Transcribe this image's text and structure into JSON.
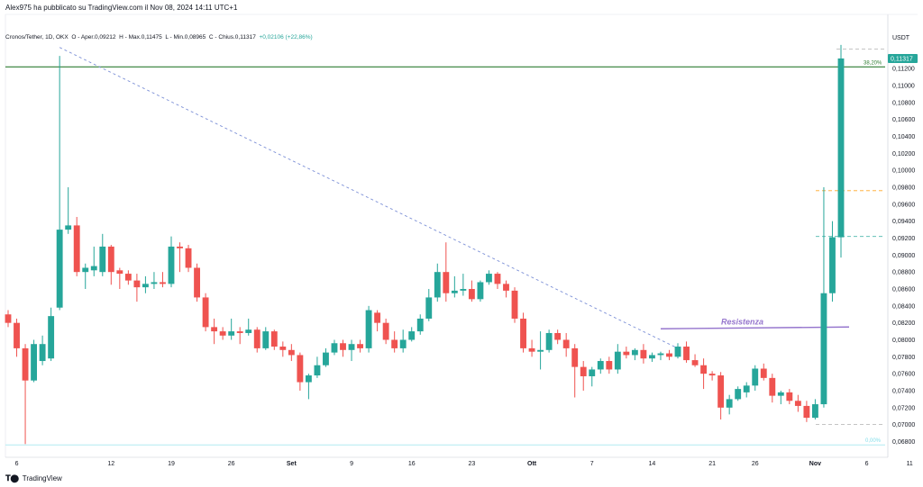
{
  "header": {
    "published_by": "Alex975 ha pubblicato su TradingView.com il Nov 08, 2024 14:11 UTC+1"
  },
  "legend": {
    "symbol": "Cronos/Tether, 1D, OKX",
    "open": "O - Aper.0,09212",
    "high": "H - Max.0,11475",
    "low": "L - Min.0,08965",
    "close": "C - Chius.0,11317",
    "change": "+0,02106 (+22,86%)"
  },
  "footer": {
    "brand": "TradingView",
    "logo_icon": "tradingview-logo-icon"
  },
  "colors": {
    "up": "#26a69a",
    "down": "#ef5350",
    "trendline": "#7b8fd6",
    "resistance": "#9575cd",
    "fib_line": "#2e7d32",
    "fib_zero": "#b2ebf2",
    "dashed_teal": "#4db6ac",
    "dashed_orange": "#ffa726"
  },
  "chart_data": {
    "type": "candlestick",
    "quote_unit": "USDT",
    "ylim": [
      0.0672,
      0.115
    ],
    "y_ticks": [
      "0,11200",
      "0,11000",
      "0,10800",
      "0,10600",
      "0,10400",
      "0,10200",
      "0,10000",
      "0,09800",
      "0,09600",
      "0,09400",
      "0,09200",
      "0,09000",
      "0,08800",
      "0,08600",
      "0,08400",
      "0,08200",
      "0,08000",
      "0,07800",
      "0,07600",
      "0,07400",
      "0,07200",
      "0,07000",
      "0,06800"
    ],
    "x_tick_labels": [
      "6",
      "12",
      "19",
      "26",
      "Set",
      "9",
      "16",
      "23",
      "Ott",
      "7",
      "14",
      "21",
      "26",
      "Nov",
      "6",
      "11"
    ],
    "last_price_label": "0,11317",
    "annotations": {
      "resistance_label": "Resistenza",
      "fib_top_label": "38,20%",
      "fib_bottom_label": "0,00%"
    },
    "levels": {
      "fib_38_2": 0.1122,
      "fib_0": 0.0676,
      "resistance": 0.0813,
      "dashed_top": 0.1143,
      "dashed_orange": 0.0976,
      "dashed_teal": 0.0922,
      "dashed_bottom": 0.07
    },
    "trendline": {
      "from": [
        0.114,
        0
      ],
      "to": [
        0.079,
        91
      ]
    },
    "candles": [
      {
        "o": 0.083,
        "h": 0.0835,
        "l": 0.0815,
        "c": 0.082
      },
      {
        "o": 0.082,
        "h": 0.0825,
        "l": 0.078,
        "c": 0.079
      },
      {
        "o": 0.079,
        "h": 0.0795,
        "l": 0.0677,
        "c": 0.0752
      },
      {
        "o": 0.0752,
        "h": 0.08,
        "l": 0.075,
        "c": 0.0795
      },
      {
        "o": 0.0775,
        "h": 0.0805,
        "l": 0.077,
        "c": 0.0795
      },
      {
        "o": 0.0778,
        "h": 0.0838,
        "l": 0.0775,
        "c": 0.0828
      },
      {
        "o": 0.0838,
        "h": 0.1135,
        "l": 0.0835,
        "c": 0.093
      },
      {
        "o": 0.093,
        "h": 0.098,
        "l": 0.0925,
        "c": 0.0935
      },
      {
        "o": 0.0935,
        "h": 0.0945,
        "l": 0.0875,
        "c": 0.088
      },
      {
        "o": 0.088,
        "h": 0.089,
        "l": 0.086,
        "c": 0.0885
      },
      {
        "o": 0.0882,
        "h": 0.091,
        "l": 0.0875,
        "c": 0.0887
      },
      {
        "o": 0.088,
        "h": 0.0925,
        "l": 0.0875,
        "c": 0.091
      },
      {
        "o": 0.091,
        "h": 0.0912,
        "l": 0.0865,
        "c": 0.088
      },
      {
        "o": 0.0882,
        "h": 0.0885,
        "l": 0.086,
        "c": 0.0878
      },
      {
        "o": 0.0878,
        "h": 0.0882,
        "l": 0.0865,
        "c": 0.087
      },
      {
        "o": 0.087,
        "h": 0.0878,
        "l": 0.0845,
        "c": 0.0862
      },
      {
        "o": 0.0862,
        "h": 0.0875,
        "l": 0.0855,
        "c": 0.0866
      },
      {
        "o": 0.0866,
        "h": 0.088,
        "l": 0.086,
        "c": 0.0868
      },
      {
        "o": 0.0868,
        "h": 0.088,
        "l": 0.0862,
        "c": 0.0866
      },
      {
        "o": 0.0866,
        "h": 0.0922,
        "l": 0.0862,
        "c": 0.091
      },
      {
        "o": 0.091,
        "h": 0.0915,
        "l": 0.088,
        "c": 0.0908
      },
      {
        "o": 0.0908,
        "h": 0.0912,
        "l": 0.088,
        "c": 0.0885
      },
      {
        "o": 0.0885,
        "h": 0.089,
        "l": 0.0845,
        "c": 0.085
      },
      {
        "o": 0.085,
        "h": 0.0855,
        "l": 0.081,
        "c": 0.0815
      },
      {
        "o": 0.0815,
        "h": 0.0825,
        "l": 0.0795,
        "c": 0.081
      },
      {
        "o": 0.081,
        "h": 0.0815,
        "l": 0.08,
        "c": 0.0805
      },
      {
        "o": 0.0805,
        "h": 0.0825,
        "l": 0.08,
        "c": 0.081
      },
      {
        "o": 0.081,
        "h": 0.0815,
        "l": 0.0795,
        "c": 0.0808
      },
      {
        "o": 0.0808,
        "h": 0.0825,
        "l": 0.0805,
        "c": 0.0812
      },
      {
        "o": 0.0812,
        "h": 0.0815,
        "l": 0.0785,
        "c": 0.079
      },
      {
        "o": 0.079,
        "h": 0.0815,
        "l": 0.0788,
        "c": 0.081
      },
      {
        "o": 0.081,
        "h": 0.0812,
        "l": 0.0788,
        "c": 0.0792
      },
      {
        "o": 0.0792,
        "h": 0.0798,
        "l": 0.078,
        "c": 0.0788
      },
      {
        "o": 0.0788,
        "h": 0.0795,
        "l": 0.0775,
        "c": 0.0782
      },
      {
        "o": 0.0782,
        "h": 0.0785,
        "l": 0.074,
        "c": 0.075
      },
      {
        "o": 0.075,
        "h": 0.076,
        "l": 0.073,
        "c": 0.0758
      },
      {
        "o": 0.0758,
        "h": 0.078,
        "l": 0.0755,
        "c": 0.077
      },
      {
        "o": 0.077,
        "h": 0.079,
        "l": 0.0768,
        "c": 0.0785
      },
      {
        "o": 0.0785,
        "h": 0.08,
        "l": 0.0782,
        "c": 0.0796
      },
      {
        "o": 0.0796,
        "h": 0.08,
        "l": 0.078,
        "c": 0.0788
      },
      {
        "o": 0.0788,
        "h": 0.08,
        "l": 0.0775,
        "c": 0.0795
      },
      {
        "o": 0.0795,
        "h": 0.08,
        "l": 0.0785,
        "c": 0.079
      },
      {
        "o": 0.079,
        "h": 0.084,
        "l": 0.0785,
        "c": 0.0835
      },
      {
        "o": 0.0832,
        "h": 0.0835,
        "l": 0.081,
        "c": 0.082
      },
      {
        "o": 0.082,
        "h": 0.0825,
        "l": 0.0795,
        "c": 0.08
      },
      {
        "o": 0.08,
        "h": 0.081,
        "l": 0.0785,
        "c": 0.079
      },
      {
        "o": 0.079,
        "h": 0.0812,
        "l": 0.0785,
        "c": 0.08
      },
      {
        "o": 0.08,
        "h": 0.0815,
        "l": 0.0798,
        "c": 0.081
      },
      {
        "o": 0.081,
        "h": 0.083,
        "l": 0.0806,
        "c": 0.0825
      },
      {
        "o": 0.0825,
        "h": 0.086,
        "l": 0.0822,
        "c": 0.085
      },
      {
        "o": 0.085,
        "h": 0.089,
        "l": 0.0845,
        "c": 0.088
      },
      {
        "o": 0.088,
        "h": 0.0915,
        "l": 0.0845,
        "c": 0.0855
      },
      {
        "o": 0.0855,
        "h": 0.0875,
        "l": 0.085,
        "c": 0.0858
      },
      {
        "o": 0.0858,
        "h": 0.0878,
        "l": 0.0852,
        "c": 0.086
      },
      {
        "o": 0.086,
        "h": 0.087,
        "l": 0.0845,
        "c": 0.0848
      },
      {
        "o": 0.0848,
        "h": 0.087,
        "l": 0.0845,
        "c": 0.0868
      },
      {
        "o": 0.0868,
        "h": 0.0882,
        "l": 0.0865,
        "c": 0.0878
      },
      {
        "o": 0.0878,
        "h": 0.088,
        "l": 0.086,
        "c": 0.0866
      },
      {
        "o": 0.0866,
        "h": 0.087,
        "l": 0.085,
        "c": 0.0858
      },
      {
        "o": 0.0858,
        "h": 0.0862,
        "l": 0.082,
        "c": 0.0825
      },
      {
        "o": 0.0825,
        "h": 0.0832,
        "l": 0.0785,
        "c": 0.079
      },
      {
        "o": 0.079,
        "h": 0.08,
        "l": 0.078,
        "c": 0.0786
      },
      {
        "o": 0.0786,
        "h": 0.081,
        "l": 0.0765,
        "c": 0.0788
      },
      {
        "o": 0.0788,
        "h": 0.0812,
        "l": 0.0785,
        "c": 0.0808
      },
      {
        "o": 0.0808,
        "h": 0.0812,
        "l": 0.0795,
        "c": 0.08
      },
      {
        "o": 0.08,
        "h": 0.0808,
        "l": 0.078,
        "c": 0.079
      },
      {
        "o": 0.079,
        "h": 0.0795,
        "l": 0.0732,
        "c": 0.0768
      },
      {
        "o": 0.0768,
        "h": 0.0775,
        "l": 0.074,
        "c": 0.0757
      },
      {
        "o": 0.0757,
        "h": 0.0768,
        "l": 0.0745,
        "c": 0.0765
      },
      {
        "o": 0.0765,
        "h": 0.0778,
        "l": 0.076,
        "c": 0.0775
      },
      {
        "o": 0.0775,
        "h": 0.078,
        "l": 0.076,
        "c": 0.0765
      },
      {
        "o": 0.0765,
        "h": 0.0795,
        "l": 0.076,
        "c": 0.0786
      },
      {
        "o": 0.0786,
        "h": 0.0792,
        "l": 0.0778,
        "c": 0.0782
      },
      {
        "o": 0.0782,
        "h": 0.079,
        "l": 0.0776,
        "c": 0.0788
      },
      {
        "o": 0.0788,
        "h": 0.0795,
        "l": 0.0772,
        "c": 0.0778
      },
      {
        "o": 0.0778,
        "h": 0.0785,
        "l": 0.0774,
        "c": 0.0782
      },
      {
        "o": 0.0782,
        "h": 0.0786,
        "l": 0.0776,
        "c": 0.0784
      },
      {
        "o": 0.0784,
        "h": 0.0788,
        "l": 0.0776,
        "c": 0.078
      },
      {
        "o": 0.078,
        "h": 0.0796,
        "l": 0.0778,
        "c": 0.0792
      },
      {
        "o": 0.0792,
        "h": 0.0798,
        "l": 0.0773,
        "c": 0.0776
      },
      {
        "o": 0.0776,
        "h": 0.0783,
        "l": 0.0768,
        "c": 0.077
      },
      {
        "o": 0.077,
        "h": 0.0778,
        "l": 0.0742,
        "c": 0.076
      },
      {
        "o": 0.076,
        "h": 0.0763,
        "l": 0.0752,
        "c": 0.0758
      },
      {
        "o": 0.0758,
        "h": 0.0762,
        "l": 0.0706,
        "c": 0.072
      },
      {
        "o": 0.072,
        "h": 0.0735,
        "l": 0.0712,
        "c": 0.073
      },
      {
        "o": 0.073,
        "h": 0.0745,
        "l": 0.0728,
        "c": 0.0742
      },
      {
        "o": 0.0738,
        "h": 0.075,
        "l": 0.0732,
        "c": 0.0746
      },
      {
        "o": 0.0746,
        "h": 0.077,
        "l": 0.074,
        "c": 0.0766
      },
      {
        "o": 0.0766,
        "h": 0.0772,
        "l": 0.0752,
        "c": 0.0755
      },
      {
        "o": 0.0755,
        "h": 0.076,
        "l": 0.0726,
        "c": 0.0734
      },
      {
        "o": 0.0734,
        "h": 0.074,
        "l": 0.0724,
        "c": 0.0738
      },
      {
        "o": 0.0738,
        "h": 0.0742,
        "l": 0.0724,
        "c": 0.0728
      },
      {
        "o": 0.0728,
        "h": 0.0735,
        "l": 0.0715,
        "c": 0.0722
      },
      {
        "o": 0.0722,
        "h": 0.0728,
        "l": 0.0703,
        "c": 0.0708
      },
      {
        "o": 0.0708,
        "h": 0.073,
        "l": 0.0706,
        "c": 0.0724
      },
      {
        "o": 0.0724,
        "h": 0.098,
        "l": 0.072,
        "c": 0.0855
      },
      {
        "o": 0.0855,
        "h": 0.094,
        "l": 0.0845,
        "c": 0.0921
      },
      {
        "o": 0.0921,
        "h": 0.1148,
        "l": 0.0897,
        "c": 0.1132
      }
    ]
  }
}
